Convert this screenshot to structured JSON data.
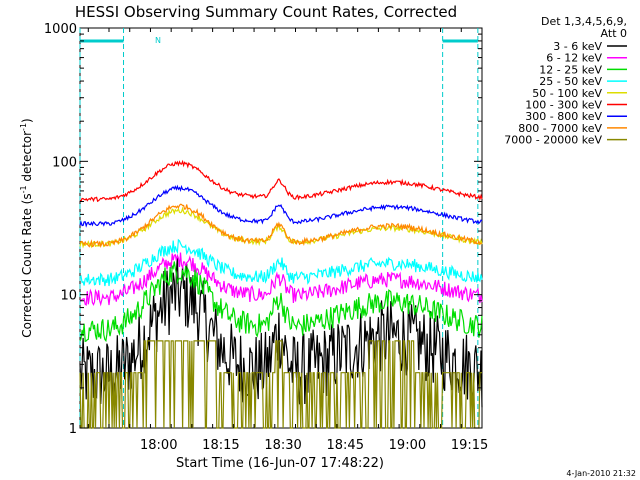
{
  "chart_data": {
    "type": "line",
    "title": "HESSI Observing Summary Count Rates, Corrected",
    "xlabel": "Start Time (16-Jun-07 17:48:22)",
    "ylabel_main": "Corrected Count Rate (s",
    "ylabel_sup1": "-1",
    "ylabel_mid": " detector",
    "ylabel_sup2": "-1",
    "ylabel_end": ")",
    "yscale": "log",
    "ylim": [
      1,
      1000
    ],
    "xlim_minutes": [
      -7,
      90
    ],
    "x_ticks": [
      {
        "label": "18:00",
        "minute": 12
      },
      {
        "label": "18:15",
        "minute": 27
      },
      {
        "label": "18:30",
        "minute": 42
      },
      {
        "label": "18:45",
        "minute": 57
      },
      {
        "label": "19:00",
        "minute": 72
      },
      {
        "label": "19:15",
        "minute": 87
      }
    ],
    "y_tick_labels": [
      {
        "label": "1",
        "value": 1
      },
      {
        "label": "10",
        "value": 10
      },
      {
        "label": "100",
        "value": 100
      },
      {
        "label": "1000",
        "value": 1000
      }
    ],
    "legend_header": [
      "Det 1,3,4,5,6,9,",
      "Att 0"
    ],
    "night_marker": "N",
    "timestamp": "4-Jan-2010 21:32",
    "series": [
      {
        "name": "3 - 6 keV",
        "color": "#000000",
        "base": 2.5,
        "peak": 11,
        "noise": 0.28
      },
      {
        "name": "6 - 12 keV",
        "color": "#ff00ff",
        "base": 9.5,
        "peak": 19,
        "noise": 0.06
      },
      {
        "name": "12 - 25 keV",
        "color": "#00dd00",
        "base": 5.5,
        "peak": 16,
        "noise": 0.09
      },
      {
        "name": "25 - 50 keV",
        "color": "#00ffff",
        "base": 13,
        "peak": 24,
        "noise": 0.05
      },
      {
        "name": "50 - 100 keV",
        "color": "#dddd00",
        "base": 24,
        "peak": 44,
        "noise": 0.02
      },
      {
        "name": "100 - 300 keV",
        "color": "#ff0000",
        "base": 52,
        "peak": 100,
        "noise": 0.015
      },
      {
        "name": "300 - 800 keV",
        "color": "#0000ff",
        "base": 34,
        "peak": 65,
        "noise": 0.015
      },
      {
        "name": "800 - 7000 keV",
        "color": "#ff8800",
        "base": 24,
        "peak": 48,
        "noise": 0.02
      },
      {
        "name": "7000 - 20000 keV",
        "color": "#888800",
        "base": 1,
        "peak": 4,
        "noise": 0.0
      }
    ],
    "saa_intervals_minutes": [
      [
        -7,
        3.5
      ],
      [
        80.5,
        89
      ]
    ],
    "eclipse_lines_minutes": [
      -7,
      3.5,
      80.5,
      89
    ]
  }
}
